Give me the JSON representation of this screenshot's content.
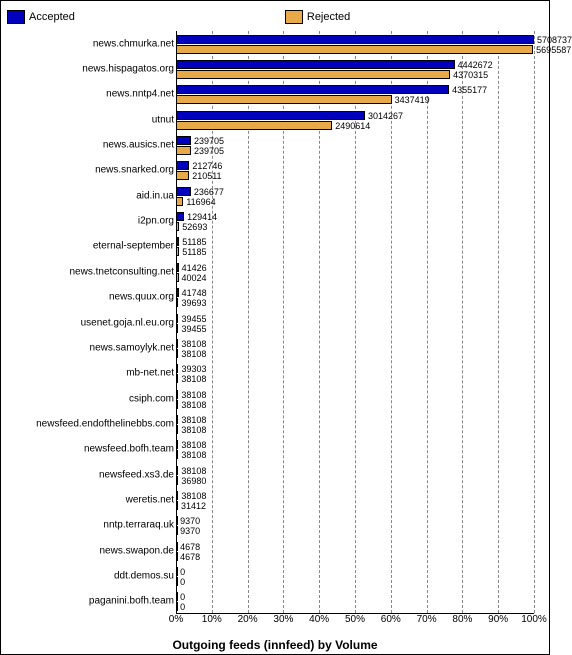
{
  "legend": {
    "accepted": "Accepted",
    "rejected": "Rejected"
  },
  "chart": {
    "type": "bar",
    "title": "Outgoing feeds (innfeed) by Volume",
    "accepted_color": "#0000bd",
    "rejected_color": "#e8a948",
    "background_color": "#ffffff",
    "grid_color": "#888888",
    "xlim": [
      0,
      100
    ],
    "xticks": [
      "0%",
      "10%",
      "20%",
      "30%",
      "40%",
      "50%",
      "60%",
      "70%",
      "80%",
      "90%",
      "100%"
    ],
    "max_value": 5708737,
    "rows": [
      {
        "label": "news.chmurka.net",
        "accepted": 5708737,
        "rejected": 5695587
      },
      {
        "label": "news.hispagatos.org",
        "accepted": 4442672,
        "rejected": 4370315
      },
      {
        "label": "news.nntp4.net",
        "accepted": 4355177,
        "rejected": 3437419
      },
      {
        "label": "utnut",
        "accepted": 3014267,
        "rejected": 2490614
      },
      {
        "label": "news.ausics.net",
        "accepted": 239705,
        "rejected": 239705
      },
      {
        "label": "news.snarked.org",
        "accepted": 212746,
        "rejected": 210511
      },
      {
        "label": "aid.in.ua",
        "accepted": 236677,
        "rejected": 116964
      },
      {
        "label": "i2pn.org",
        "accepted": 129414,
        "rejected": 52693
      },
      {
        "label": "eternal-september",
        "accepted": 51185,
        "rejected": 51185
      },
      {
        "label": "news.tnetconsulting.net",
        "accepted": 41426,
        "rejected": 40024
      },
      {
        "label": "news.quux.org",
        "accepted": 41748,
        "rejected": 39693
      },
      {
        "label": "usenet.goja.nl.eu.org",
        "accepted": 39455,
        "rejected": 39455
      },
      {
        "label": "news.samoylyk.net",
        "accepted": 38108,
        "rejected": 38108
      },
      {
        "label": "mb-net.net",
        "accepted": 39303,
        "rejected": 38108
      },
      {
        "label": "csiph.com",
        "accepted": 38108,
        "rejected": 38108
      },
      {
        "label": "newsfeed.endofthelinebbs.com",
        "accepted": 38108,
        "rejected": 38108
      },
      {
        "label": "newsfeed.bofh.team",
        "accepted": 38108,
        "rejected": 38108
      },
      {
        "label": "newsfeed.xs3.de",
        "accepted": 38108,
        "rejected": 36980
      },
      {
        "label": "weretis.net",
        "accepted": 38108,
        "rejected": 31412
      },
      {
        "label": "nntp.terraraq.uk",
        "accepted": 9370,
        "rejected": 9370
      },
      {
        "label": "news.swapon.de",
        "accepted": 4678,
        "rejected": 4678
      },
      {
        "label": "ddt.demos.su",
        "accepted": 0,
        "rejected": 0
      },
      {
        "label": "paganini.bofh.team",
        "accepted": 0,
        "rejected": 0
      }
    ]
  }
}
